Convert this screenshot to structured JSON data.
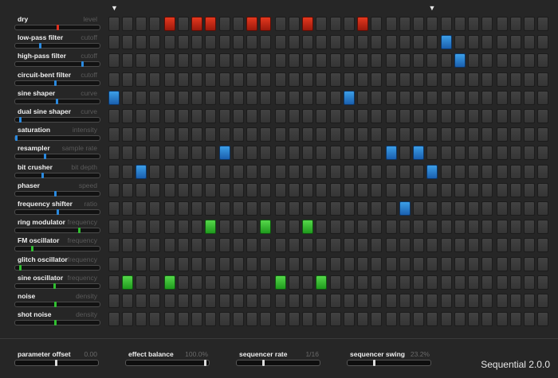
{
  "app": {
    "title": "Sequential 2.0.0"
  },
  "colors": {
    "red": "#d0301a",
    "blue": "#2a7fd0",
    "green": "#38c02e",
    "knob_red": "#e03020",
    "knob_blue": "#2a8ae0",
    "knob_green": "#30c030"
  },
  "rows": [
    {
      "name": "dry",
      "param": "level",
      "value": 0.52,
      "knob_color": "red",
      "active": [
        4,
        6,
        7,
        10,
        11,
        14,
        18
      ]
    },
    {
      "name": "low-pass filter",
      "param": "cutoff",
      "value": 0.3,
      "knob_color": "blue",
      "active": [
        24
      ]
    },
    {
      "name": "high-pass filter",
      "param": "cutoff",
      "value": 0.83,
      "knob_color": "blue",
      "active": [
        25
      ]
    },
    {
      "name": "circuit-bent filter",
      "param": "cutoff",
      "value": 0.49,
      "knob_color": "blue",
      "active": []
    },
    {
      "name": "sine shaper",
      "param": "curve",
      "value": 0.51,
      "knob_color": "blue",
      "active": [
        0,
        17
      ]
    },
    {
      "name": "dual sine shaper",
      "param": "curve",
      "value": 0.05,
      "knob_color": "blue",
      "active": []
    },
    {
      "name": "saturation",
      "param": "intensity",
      "value": 0.0,
      "knob_color": "blue",
      "active": []
    },
    {
      "name": "resampler",
      "param": "sample rate",
      "value": 0.36,
      "knob_color": "blue",
      "active": [
        8,
        20,
        22
      ]
    },
    {
      "name": "bit crusher",
      "param": "bit depth",
      "value": 0.33,
      "knob_color": "blue",
      "active": [
        2,
        23
      ]
    },
    {
      "name": "phaser",
      "param": "speed",
      "value": 0.49,
      "knob_color": "blue",
      "active": []
    },
    {
      "name": "frequency shifter",
      "param": "ratio",
      "value": 0.52,
      "knob_color": "blue",
      "active": [
        21
      ]
    },
    {
      "name": "ring modulator",
      "param": "frequency",
      "value": 0.79,
      "knob_color": "green",
      "active": [
        7,
        11,
        14
      ]
    },
    {
      "name": "FM oscillator",
      "param": "frequency",
      "value": 0.2,
      "knob_color": "green",
      "active": []
    },
    {
      "name": "glitch oscillator",
      "param": "frequency",
      "value": 0.05,
      "knob_color": "green",
      "active": []
    },
    {
      "name": "sine oscillator",
      "param": "frequency",
      "value": 0.48,
      "knob_color": "green",
      "active": [
        1,
        4,
        12,
        15
      ]
    },
    {
      "name": "noise",
      "param": "density",
      "value": 0.49,
      "knob_color": "green",
      "active": []
    },
    {
      "name": "shot noise",
      "param": "density",
      "value": 0.49,
      "knob_color": "green",
      "active": []
    }
  ],
  "sequencer": {
    "steps": 32,
    "loop_start_step": 0,
    "loop_end_step": 23,
    "loop_start_marker": "▼",
    "loop_end_marker": "▼"
  },
  "bottom_controls": [
    {
      "name": "parameter offset",
      "value": "0.00",
      "level": 0.5
    },
    {
      "name": "effect balance",
      "value": "100.0%",
      "level": 0.98
    },
    {
      "name": "sequencer rate",
      "value": "1/16",
      "level": 0.32
    },
    {
      "name": "sequencer swing",
      "value": "23.2%",
      "level": 0.32
    }
  ]
}
